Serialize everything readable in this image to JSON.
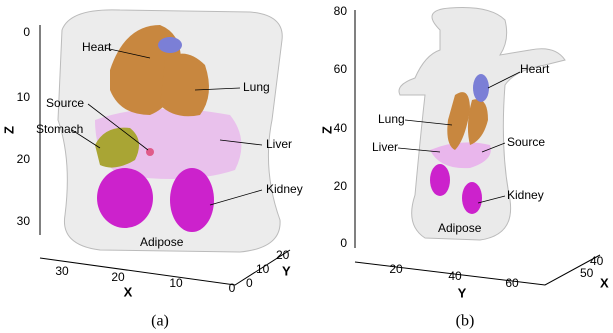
{
  "panels": [
    {
      "caption": "(a)",
      "labels": {
        "heart": "Heart",
        "lung": "Lung",
        "source": "Source",
        "stomach": "Stomach",
        "liver": "Liver",
        "kidney": "Kidney",
        "adipose": "Adipose"
      },
      "axes": {
        "z": {
          "label": "Z",
          "ticks": [
            0,
            10,
            20,
            30
          ]
        },
        "x": {
          "label": "X",
          "ticks": [
            30,
            20,
            10,
            0
          ]
        },
        "y": {
          "label": "Y",
          "ticks": [
            0,
            10,
            20
          ]
        }
      }
    },
    {
      "caption": "(b)",
      "labels": {
        "heart": "Heart",
        "lung": "Lung",
        "liver": "Liver",
        "source": "Source",
        "kidney": "Kidney",
        "adipose": "Adipose"
      },
      "axes": {
        "z": {
          "label": "Z",
          "ticks": [
            80,
            60,
            40,
            20,
            0
          ]
        },
        "y": {
          "label": "Y",
          "ticks": [
            20,
            40,
            60
          ]
        },
        "x": {
          "label": "X",
          "ticks": [
            40,
            50
          ]
        }
      }
    }
  ]
}
